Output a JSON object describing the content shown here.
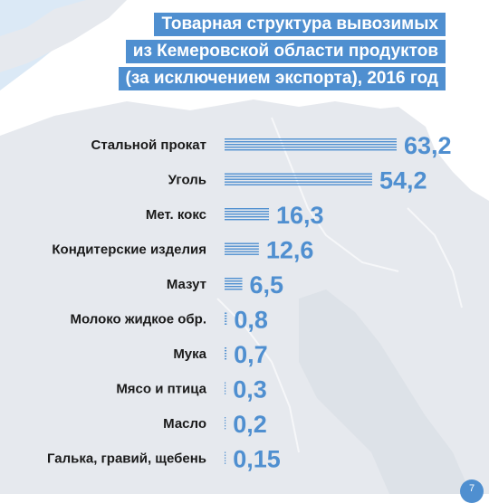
{
  "title": {
    "lines": [
      "Товарная структура вывозимых",
      "из Кемеровской области продуктов",
      "(за исключением экспорта), 2016 год"
    ]
  },
  "page_number": "7",
  "colors": {
    "accent": "#4f8fd0",
    "map_fill": "#e6e9ee",
    "map_water": "#dbe9f6",
    "bar_stripe": "#4f8fd0"
  },
  "chart_data": {
    "type": "bar",
    "orientation": "horizontal",
    "title": "Товарная структура вывозимых из Кемеровской области продуктов (за исключением экспорта), 2016 год",
    "categories": [
      "Стальной прокат",
      "Уголь",
      "Мет. кокс",
      "Кондитерские изделия",
      "Мазут",
      "Молоко жидкое обр.",
      "Мука",
      "Мясо и птица",
      "Масло",
      "Галька, гравий, щебень"
    ],
    "values": [
      63.2,
      54.2,
      16.3,
      12.6,
      6.5,
      0.8,
      0.7,
      0.3,
      0.2,
      0.15
    ],
    "value_labels": [
      "63,2",
      "54,2",
      "16,3",
      "12,6",
      "6,5",
      "0,8",
      "0,7",
      "0,3",
      "0,2",
      "0,15"
    ],
    "xlim": [
      0,
      63.2
    ],
    "bar_style": "horizontal-stripes",
    "grid": false,
    "legend": "none"
  }
}
